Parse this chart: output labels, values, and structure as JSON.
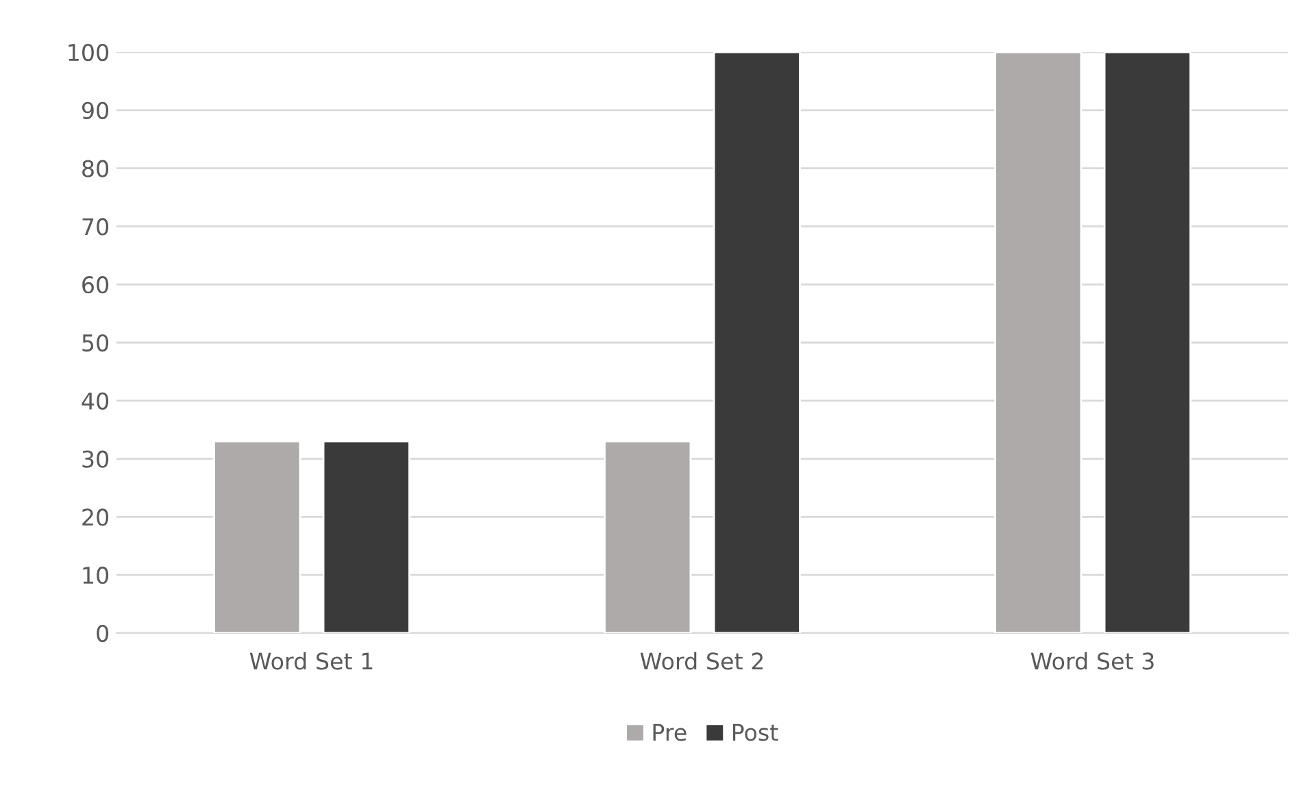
{
  "chart_data": {
    "type": "bar",
    "categories": [
      "Word Set 1",
      "Word Set 2",
      "Word Set 3"
    ],
    "series": [
      {
        "name": "Pre",
        "color": "#aeaaaa",
        "values": [
          33,
          33,
          100
        ]
      },
      {
        "name": "Post",
        "color": "#3a3a3a",
        "values": [
          33,
          100,
          100
        ]
      }
    ],
    "ylim": [
      0,
      100
    ],
    "yticks": [
      0,
      10,
      20,
      30,
      40,
      50,
      60,
      70,
      80,
      90,
      100
    ],
    "grid": "y",
    "legend": "bottom"
  }
}
